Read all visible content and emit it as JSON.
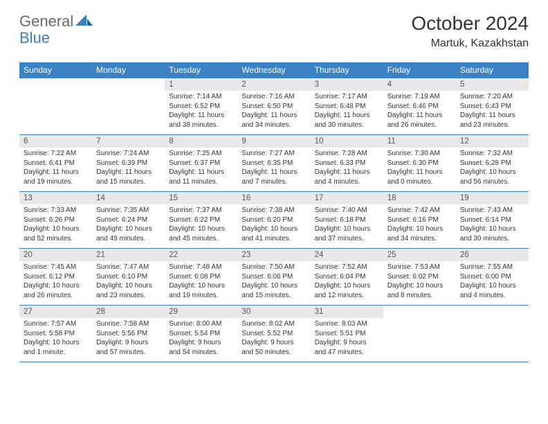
{
  "brand": {
    "part1": "General",
    "part2": "Blue"
  },
  "title": "October 2024",
  "location": "Martuk, Kazakhstan",
  "colors": {
    "header_bg": "#3b82c4",
    "header_text": "#ffffff",
    "daynum_bg": "#e8e8e8",
    "border": "#3b82c4",
    "brand_gray": "#6a6a6a",
    "brand_blue": "#3b7fc4"
  },
  "weekdays": [
    "Sunday",
    "Monday",
    "Tuesday",
    "Wednesday",
    "Thursday",
    "Friday",
    "Saturday"
  ],
  "weeks": [
    [
      {
        "n": "",
        "sr": "",
        "ss": "",
        "dl": ""
      },
      {
        "n": "",
        "sr": "",
        "ss": "",
        "dl": ""
      },
      {
        "n": "1",
        "sr": "Sunrise: 7:14 AM",
        "ss": "Sunset: 6:52 PM",
        "dl": "Daylight: 11 hours and 38 minutes."
      },
      {
        "n": "2",
        "sr": "Sunrise: 7:16 AM",
        "ss": "Sunset: 6:50 PM",
        "dl": "Daylight: 11 hours and 34 minutes."
      },
      {
        "n": "3",
        "sr": "Sunrise: 7:17 AM",
        "ss": "Sunset: 6:48 PM",
        "dl": "Daylight: 11 hours and 30 minutes."
      },
      {
        "n": "4",
        "sr": "Sunrise: 7:19 AM",
        "ss": "Sunset: 6:46 PM",
        "dl": "Daylight: 11 hours and 26 minutes."
      },
      {
        "n": "5",
        "sr": "Sunrise: 7:20 AM",
        "ss": "Sunset: 6:43 PM",
        "dl": "Daylight: 11 hours and 23 minutes."
      }
    ],
    [
      {
        "n": "6",
        "sr": "Sunrise: 7:22 AM",
        "ss": "Sunset: 6:41 PM",
        "dl": "Daylight: 11 hours and 19 minutes."
      },
      {
        "n": "7",
        "sr": "Sunrise: 7:24 AM",
        "ss": "Sunset: 6:39 PM",
        "dl": "Daylight: 11 hours and 15 minutes."
      },
      {
        "n": "8",
        "sr": "Sunrise: 7:25 AM",
        "ss": "Sunset: 6:37 PM",
        "dl": "Daylight: 11 hours and 11 minutes."
      },
      {
        "n": "9",
        "sr": "Sunrise: 7:27 AM",
        "ss": "Sunset: 6:35 PM",
        "dl": "Daylight: 11 hours and 7 minutes."
      },
      {
        "n": "10",
        "sr": "Sunrise: 7:28 AM",
        "ss": "Sunset: 6:33 PM",
        "dl": "Daylight: 11 hours and 4 minutes."
      },
      {
        "n": "11",
        "sr": "Sunrise: 7:30 AM",
        "ss": "Sunset: 6:30 PM",
        "dl": "Daylight: 11 hours and 0 minutes."
      },
      {
        "n": "12",
        "sr": "Sunrise: 7:32 AM",
        "ss": "Sunset: 6:28 PM",
        "dl": "Daylight: 10 hours and 56 minutes."
      }
    ],
    [
      {
        "n": "13",
        "sr": "Sunrise: 7:33 AM",
        "ss": "Sunset: 6:26 PM",
        "dl": "Daylight: 10 hours and 52 minutes."
      },
      {
        "n": "14",
        "sr": "Sunrise: 7:35 AM",
        "ss": "Sunset: 6:24 PM",
        "dl": "Daylight: 10 hours and 49 minutes."
      },
      {
        "n": "15",
        "sr": "Sunrise: 7:37 AM",
        "ss": "Sunset: 6:22 PM",
        "dl": "Daylight: 10 hours and 45 minutes."
      },
      {
        "n": "16",
        "sr": "Sunrise: 7:38 AM",
        "ss": "Sunset: 6:20 PM",
        "dl": "Daylight: 10 hours and 41 minutes."
      },
      {
        "n": "17",
        "sr": "Sunrise: 7:40 AM",
        "ss": "Sunset: 6:18 PM",
        "dl": "Daylight: 10 hours and 37 minutes."
      },
      {
        "n": "18",
        "sr": "Sunrise: 7:42 AM",
        "ss": "Sunset: 6:16 PM",
        "dl": "Daylight: 10 hours and 34 minutes."
      },
      {
        "n": "19",
        "sr": "Sunrise: 7:43 AM",
        "ss": "Sunset: 6:14 PM",
        "dl": "Daylight: 10 hours and 30 minutes."
      }
    ],
    [
      {
        "n": "20",
        "sr": "Sunrise: 7:45 AM",
        "ss": "Sunset: 6:12 PM",
        "dl": "Daylight: 10 hours and 26 minutes."
      },
      {
        "n": "21",
        "sr": "Sunrise: 7:47 AM",
        "ss": "Sunset: 6:10 PM",
        "dl": "Daylight: 10 hours and 23 minutes."
      },
      {
        "n": "22",
        "sr": "Sunrise: 7:48 AM",
        "ss": "Sunset: 6:08 PM",
        "dl": "Daylight: 10 hours and 19 minutes."
      },
      {
        "n": "23",
        "sr": "Sunrise: 7:50 AM",
        "ss": "Sunset: 6:06 PM",
        "dl": "Daylight: 10 hours and 15 minutes."
      },
      {
        "n": "24",
        "sr": "Sunrise: 7:52 AM",
        "ss": "Sunset: 6:04 PM",
        "dl": "Daylight: 10 hours and 12 minutes."
      },
      {
        "n": "25",
        "sr": "Sunrise: 7:53 AM",
        "ss": "Sunset: 6:02 PM",
        "dl": "Daylight: 10 hours and 8 minutes."
      },
      {
        "n": "26",
        "sr": "Sunrise: 7:55 AM",
        "ss": "Sunset: 6:00 PM",
        "dl": "Daylight: 10 hours and 4 minutes."
      }
    ],
    [
      {
        "n": "27",
        "sr": "Sunrise: 7:57 AM",
        "ss": "Sunset: 5:58 PM",
        "dl": "Daylight: 10 hours and 1 minute."
      },
      {
        "n": "28",
        "sr": "Sunrise: 7:58 AM",
        "ss": "Sunset: 5:56 PM",
        "dl": "Daylight: 9 hours and 57 minutes."
      },
      {
        "n": "29",
        "sr": "Sunrise: 8:00 AM",
        "ss": "Sunset: 5:54 PM",
        "dl": "Daylight: 9 hours and 54 minutes."
      },
      {
        "n": "30",
        "sr": "Sunrise: 8:02 AM",
        "ss": "Sunset: 5:52 PM",
        "dl": "Daylight: 9 hours and 50 minutes."
      },
      {
        "n": "31",
        "sr": "Sunrise: 8:03 AM",
        "ss": "Sunset: 5:51 PM",
        "dl": "Daylight: 9 hours and 47 minutes."
      },
      {
        "n": "",
        "sr": "",
        "ss": "",
        "dl": ""
      },
      {
        "n": "",
        "sr": "",
        "ss": "",
        "dl": ""
      }
    ]
  ]
}
